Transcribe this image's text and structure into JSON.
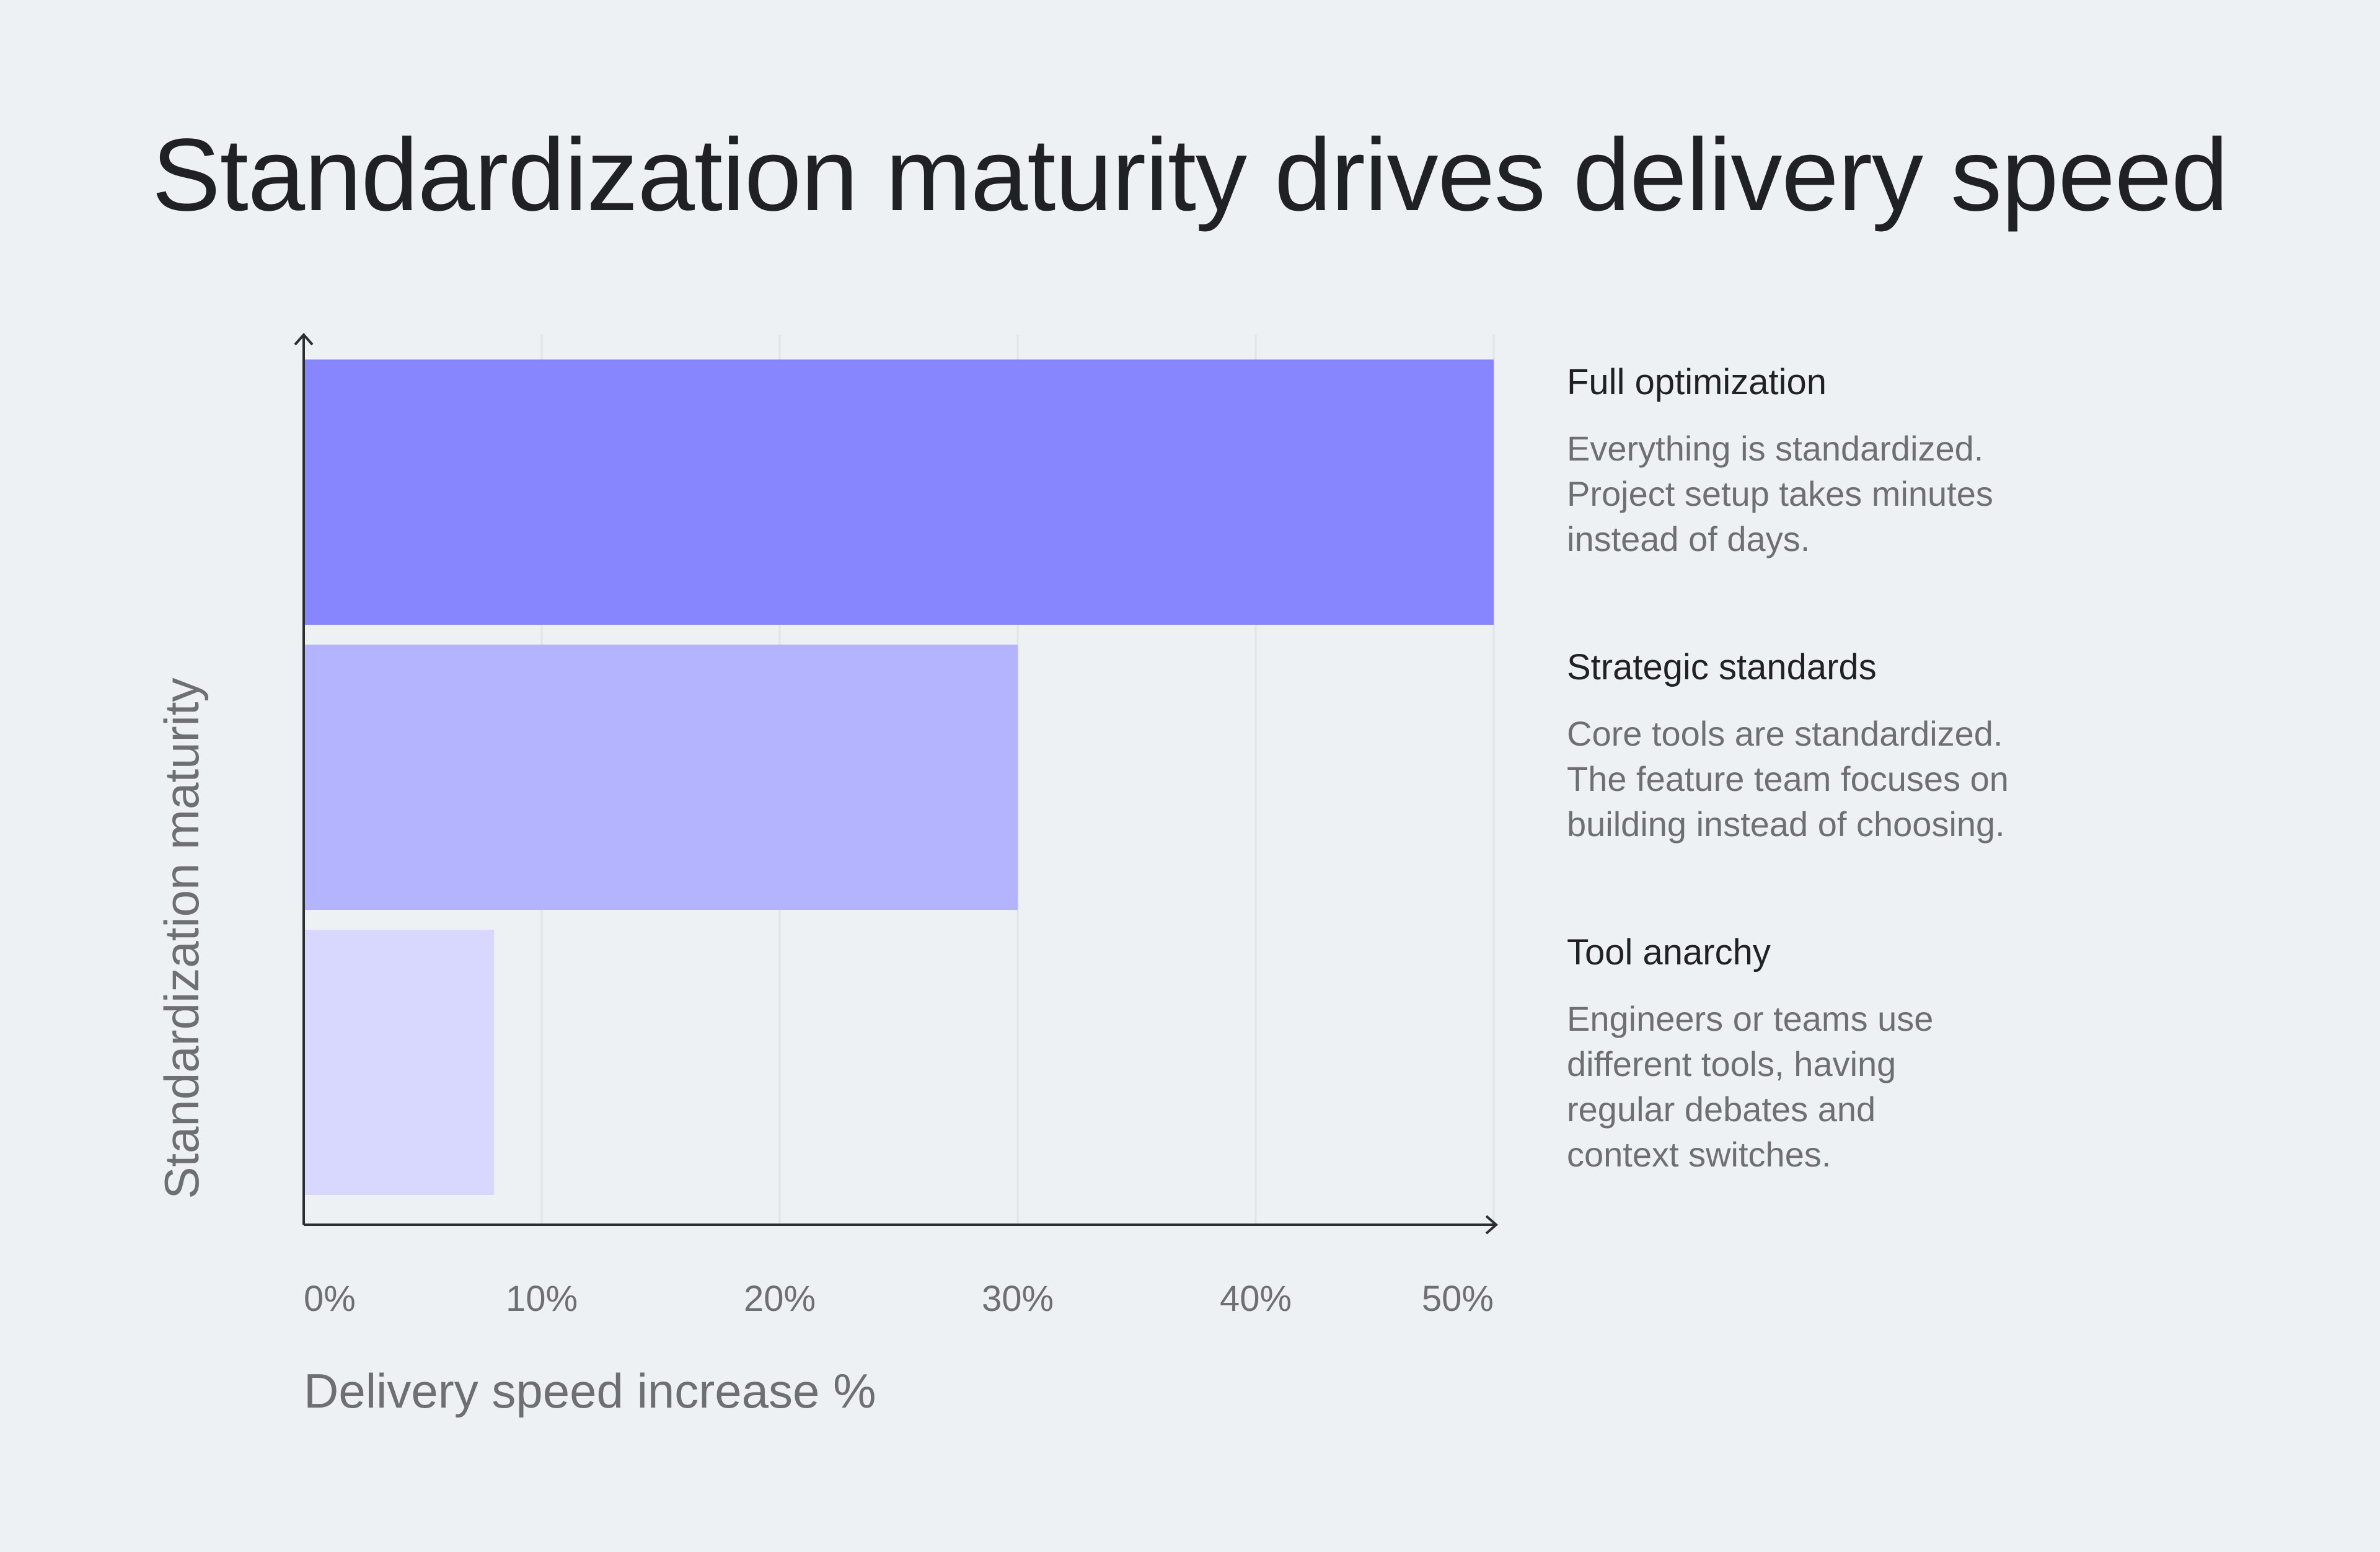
{
  "chart_data": {
    "type": "bar",
    "orientation": "horizontal",
    "title": "Standardization maturity drives delivery speed",
    "xlabel": "Delivery speed increase %",
    "ylabel": "Standardization maturity",
    "xlim": [
      0,
      50
    ],
    "x_ticks": [
      "0%",
      "10%",
      "20%",
      "30%",
      "40%",
      "50%"
    ],
    "x_tick_values": [
      0,
      10,
      20,
      30,
      40,
      50
    ],
    "grid": "vertical",
    "categories": [
      "Full optimization",
      "Strategic standards",
      "Tool anarchy"
    ],
    "values": [
      50,
      30,
      8
    ],
    "colors": [
      "#8886fe",
      "#b4b4fe",
      "#d8d7fd"
    ],
    "legend": [
      {
        "label": "Full optimization",
        "description": "Everything is standardized.\nProject setup takes minutes\ninstead of days."
      },
      {
        "label": "Strategic standards",
        "description": "Core tools are standardized.\nThe feature team focuses on\nbuilding instead of choosing."
      },
      {
        "label": "Tool anarchy",
        "description": "Engineers or teams use\ndifferent tools, having\nregular debates and\ncontext switches."
      }
    ]
  },
  "colors": {
    "background": "#eef1f4",
    "title": "#1f2124",
    "muted_text": "#6d6f72",
    "axis": "#2b2d30",
    "grid": "#dfe2e6"
  }
}
